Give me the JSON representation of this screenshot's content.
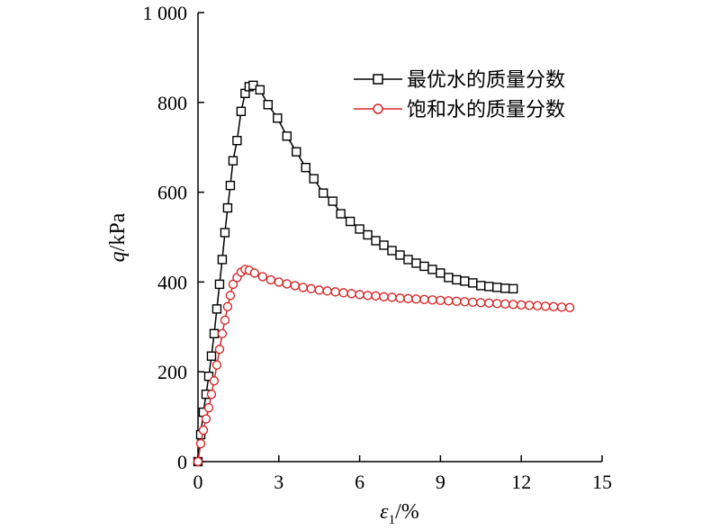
{
  "chart_data": {
    "type": "line",
    "title": "",
    "xlabel": {
      "symbol": "ε",
      "subscript": "1",
      "unit": "/%"
    },
    "ylabel": {
      "symbol": "q",
      "unit": "/kPa"
    },
    "xlim": [
      0,
      15
    ],
    "ylim": [
      0,
      1000
    ],
    "xticks": [
      0,
      3,
      6,
      9,
      12,
      15
    ],
    "yticks": [
      0,
      200,
      400,
      600,
      800,
      1000
    ],
    "xtick_labels": [
      "0",
      "3",
      "6",
      "9",
      "12",
      "15"
    ],
    "ytick_labels": [
      "0",
      "200",
      "400",
      "600",
      "800",
      "1 000"
    ],
    "grid": false,
    "legend_position": "top-right",
    "series": [
      {
        "name": "最优水的质量分数",
        "color": "#000000",
        "marker": "square",
        "x": [
          0,
          0.1,
          0.2,
          0.3,
          0.4,
          0.5,
          0.6,
          0.7,
          0.8,
          0.9,
          1.0,
          1.1,
          1.2,
          1.3,
          1.45,
          1.6,
          1.75,
          1.9,
          2.05,
          2.3,
          2.6,
          2.95,
          3.3,
          3.65,
          4.0,
          4.3,
          4.65,
          5.0,
          5.3,
          5.65,
          6.0,
          6.3,
          6.6,
          6.9,
          7.2,
          7.5,
          7.8,
          8.1,
          8.4,
          8.7,
          9.0,
          9.3,
          9.6,
          9.9,
          10.2,
          10.5,
          10.8,
          11.1,
          11.4,
          11.7
        ],
        "y": [
          0,
          60,
          110,
          150,
          190,
          235,
          285,
          340,
          395,
          450,
          510,
          565,
          615,
          670,
          715,
          780,
          820,
          835,
          838,
          828,
          795,
          765,
          725,
          690,
          655,
          630,
          598,
          580,
          552,
          535,
          518,
          505,
          492,
          482,
          470,
          460,
          450,
          442,
          435,
          428,
          420,
          410,
          405,
          402,
          398,
          392,
          390,
          388,
          386,
          385
        ]
      },
      {
        "name": "饱和水的质量分数",
        "color": "#d62728",
        "marker": "circle",
        "x": [
          0,
          0.1,
          0.2,
          0.3,
          0.4,
          0.5,
          0.6,
          0.7,
          0.8,
          0.9,
          1.0,
          1.1,
          1.2,
          1.3,
          1.45,
          1.6,
          1.75,
          1.9,
          2.1,
          2.4,
          2.7,
          3.0,
          3.3,
          3.6,
          3.9,
          4.2,
          4.5,
          4.8,
          5.1,
          5.4,
          5.7,
          6.0,
          6.3,
          6.6,
          6.9,
          7.2,
          7.5,
          7.8,
          8.1,
          8.4,
          8.7,
          9.0,
          9.3,
          9.6,
          9.9,
          10.2,
          10.5,
          10.8,
          11.1,
          11.4,
          11.7,
          12.0,
          12.3,
          12.6,
          12.9,
          13.2,
          13.5,
          13.8
        ],
        "y": [
          0,
          40,
          70,
          95,
          120,
          150,
          180,
          215,
          250,
          285,
          315,
          345,
          370,
          395,
          410,
          422,
          428,
          426,
          420,
          412,
          405,
          400,
          396,
          392,
          388,
          385,
          382,
          380,
          378,
          376,
          374,
          372,
          370,
          369,
          367,
          366,
          364,
          363,
          362,
          361,
          360,
          359,
          358,
          357,
          356,
          355,
          354,
          353,
          352,
          351,
          350,
          349,
          348,
          347,
          346,
          345,
          344,
          343
        ]
      }
    ]
  }
}
